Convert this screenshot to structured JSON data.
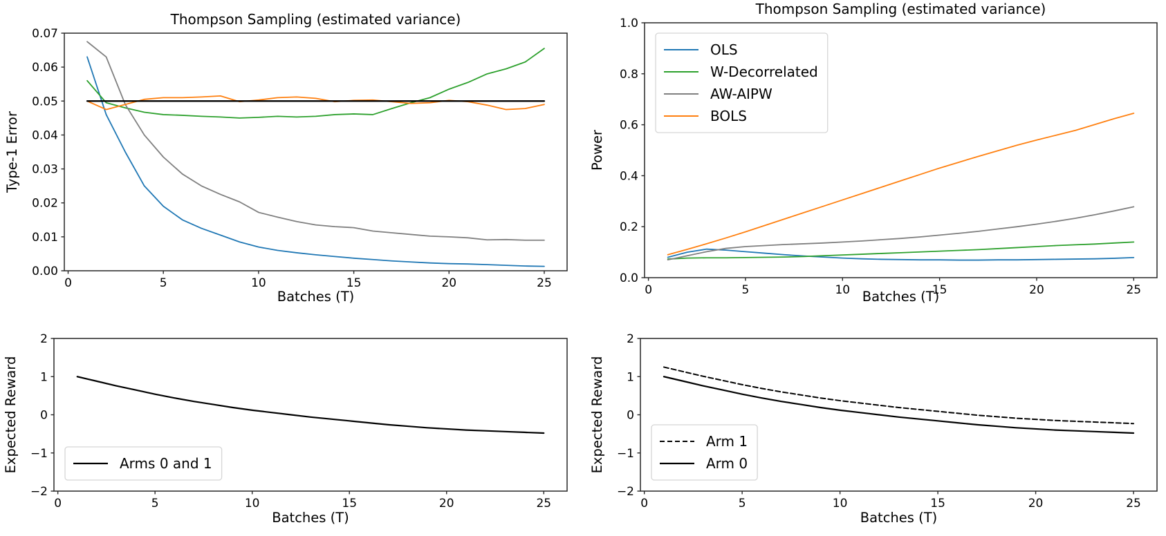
{
  "figure": {
    "background": "#ffffff",
    "text_color": "#000000",
    "spine_color": "#262626"
  },
  "chart_data": [
    {
      "type": "line",
      "title": "Thompson Sampling (estimated variance)",
      "xlabel": "Batches (T)",
      "ylabel": "Type-1 Error",
      "xlim": [
        -0.2,
        26.2
      ],
      "ylim": [
        0,
        0.07
      ],
      "xticks": [
        0,
        5,
        10,
        15,
        20,
        25
      ],
      "yticks": [
        0.0,
        0.01,
        0.02,
        0.03,
        0.04,
        0.05,
        0.06,
        0.07
      ],
      "ytick_decimals": 2,
      "grid": false,
      "legend": null,
      "x": [
        1,
        2,
        3,
        4,
        5,
        6,
        7,
        8,
        9,
        10,
        11,
        12,
        13,
        14,
        15,
        16,
        17,
        18,
        19,
        20,
        21,
        22,
        23,
        24,
        25
      ],
      "series": [
        {
          "name": "OLS",
          "color": "#1f77b4",
          "linestyle": "solid",
          "linewidth": 1.8,
          "values": [
            0.063,
            0.046,
            0.035,
            0.025,
            0.019,
            0.015,
            0.0125,
            0.0105,
            0.0085,
            0.007,
            0.006,
            0.0053,
            0.0047,
            0.0042,
            0.0037,
            0.0033,
            0.0029,
            0.0026,
            0.0023,
            0.0021,
            0.002,
            0.0018,
            0.0016,
            0.0014,
            0.0013
          ]
        },
        {
          "name": "W-Decorrelated",
          "color": "#2ca02c",
          "linestyle": "solid",
          "linewidth": 1.8,
          "values": [
            0.056,
            0.0495,
            0.048,
            0.0467,
            0.046,
            0.0458,
            0.0455,
            0.0453,
            0.045,
            0.0452,
            0.0455,
            0.0453,
            0.0455,
            0.046,
            0.0462,
            0.046,
            0.0478,
            0.0495,
            0.051,
            0.0535,
            0.0555,
            0.058,
            0.0595,
            0.0615,
            0.0655
          ]
        },
        {
          "name": "AW-AIPW",
          "color": "#7f7f7f",
          "linestyle": "solid",
          "linewidth": 1.8,
          "values": [
            0.0675,
            0.063,
            0.049,
            0.04,
            0.0335,
            0.0285,
            0.025,
            0.0225,
            0.0203,
            0.0172,
            0.0158,
            0.0145,
            0.0135,
            0.013,
            0.0127,
            0.0117,
            0.0112,
            0.0107,
            0.0102,
            0.01,
            0.0097,
            0.0091,
            0.0092,
            0.009,
            0.009
          ]
        },
        {
          "name": "BOLS",
          "color": "#ff7f0e",
          "linestyle": "solid",
          "linewidth": 1.8,
          "values": [
            0.05,
            0.0475,
            0.049,
            0.0505,
            0.051,
            0.051,
            0.0512,
            0.0515,
            0.0498,
            0.0503,
            0.051,
            0.0512,
            0.0508,
            0.0498,
            0.0502,
            0.0503,
            0.0498,
            0.0493,
            0.0495,
            0.0502,
            0.0498,
            0.0488,
            0.0475,
            0.0478,
            0.049
          ]
        },
        {
          "name": "alpha-reference-0.05",
          "color": "#000000",
          "linestyle": "solid",
          "linewidth": 2.4,
          "x": [
            1,
            25
          ],
          "values": [
            0.05,
            0.05
          ]
        }
      ]
    },
    {
      "type": "line",
      "title": "Thompson Sampling (estimated variance)",
      "xlabel": "Batches (T)",
      "ylabel": "Power",
      "xlim": [
        -0.2,
        26.2
      ],
      "ylim": [
        0,
        1.0
      ],
      "xticks": [
        0,
        5,
        10,
        15,
        20,
        25
      ],
      "yticks": [
        0.0,
        0.2,
        0.4,
        0.6,
        0.8,
        1.0
      ],
      "ytick_decimals": 1,
      "grid": false,
      "legend": {
        "loc": "upper-left",
        "entries": [
          "OLS",
          "W-Decorrelated",
          "AW-AIPW",
          "BOLS"
        ]
      },
      "x": [
        1,
        2,
        3,
        4,
        5,
        6,
        7,
        8,
        9,
        10,
        11,
        12,
        13,
        14,
        15,
        16,
        17,
        18,
        19,
        20,
        21,
        22,
        23,
        24,
        25
      ],
      "series": [
        {
          "name": "OLS",
          "color": "#1f77b4",
          "linestyle": "solid",
          "linewidth": 1.8,
          "values": [
            0.08,
            0.1,
            0.112,
            0.108,
            0.102,
            0.096,
            0.09,
            0.085,
            0.081,
            0.077,
            0.074,
            0.072,
            0.071,
            0.07,
            0.07,
            0.069,
            0.069,
            0.07,
            0.07,
            0.071,
            0.072,
            0.073,
            0.074,
            0.076,
            0.079
          ]
        },
        {
          "name": "W-Decorrelated",
          "color": "#2ca02c",
          "linestyle": "solid",
          "linewidth": 1.8,
          "values": [
            0.073,
            0.077,
            0.078,
            0.078,
            0.079,
            0.08,
            0.081,
            0.083,
            0.086,
            0.089,
            0.092,
            0.095,
            0.098,
            0.101,
            0.104,
            0.107,
            0.11,
            0.114,
            0.118,
            0.122,
            0.126,
            0.129,
            0.132,
            0.136,
            0.14
          ]
        },
        {
          "name": "AW-AIPW",
          "color": "#7f7f7f",
          "linestyle": "solid",
          "linewidth": 1.8,
          "values": [
            0.07,
            0.086,
            0.102,
            0.115,
            0.122,
            0.126,
            0.13,
            0.133,
            0.136,
            0.14,
            0.144,
            0.149,
            0.154,
            0.16,
            0.167,
            0.174,
            0.182,
            0.191,
            0.2,
            0.21,
            0.221,
            0.233,
            0.247,
            0.262,
            0.278
          ]
        },
        {
          "name": "BOLS",
          "color": "#ff7f0e",
          "linestyle": "solid",
          "linewidth": 1.8,
          "values": [
            0.09,
            0.111,
            0.133,
            0.156,
            0.18,
            0.205,
            0.23,
            0.255,
            0.28,
            0.305,
            0.33,
            0.355,
            0.38,
            0.405,
            0.43,
            0.453,
            0.476,
            0.498,
            0.52,
            0.54,
            0.559,
            0.578,
            0.601,
            0.624,
            0.645
          ]
        }
      ]
    },
    {
      "type": "line",
      "title": "",
      "xlabel": "Batches (T)",
      "ylabel": "Expected Reward",
      "xlim": [
        -0.2,
        26.2
      ],
      "ylim": [
        -2,
        2
      ],
      "xticks": [
        0,
        5,
        10,
        15,
        20,
        25
      ],
      "yticks": [
        -2,
        -1,
        0,
        1,
        2
      ],
      "ytick_decimals": 0,
      "grid": false,
      "legend": {
        "loc": "lower-left",
        "entries": [
          "Arms 0 and 1"
        ]
      },
      "x": [
        1,
        2,
        3,
        4,
        5,
        6,
        7,
        8,
        9,
        10,
        11,
        12,
        13,
        14,
        15,
        16,
        17,
        18,
        19,
        20,
        21,
        22,
        23,
        24,
        25
      ],
      "series": [
        {
          "name": "Arms 0 and 1",
          "color": "#000000",
          "linestyle": "solid",
          "linewidth": 2.2,
          "values": [
            1.0,
            0.88,
            0.76,
            0.65,
            0.54,
            0.44,
            0.35,
            0.27,
            0.19,
            0.12,
            0.06,
            0.0,
            -0.06,
            -0.11,
            -0.16,
            -0.21,
            -0.26,
            -0.3,
            -0.34,
            -0.37,
            -0.4,
            -0.42,
            -0.44,
            -0.46,
            -0.48
          ]
        }
      ]
    },
    {
      "type": "line",
      "title": "",
      "xlabel": "Batches (T)",
      "ylabel": "Expected Reward",
      "xlim": [
        -0.2,
        26.2
      ],
      "ylim": [
        -2,
        2
      ],
      "xticks": [
        0,
        5,
        10,
        15,
        20,
        25
      ],
      "yticks": [
        -2,
        -1,
        0,
        1,
        2
      ],
      "ytick_decimals": 0,
      "grid": false,
      "legend": {
        "loc": "lower-left",
        "entries": [
          "Arm 1",
          "Arm 0"
        ]
      },
      "x": [
        1,
        2,
        3,
        4,
        5,
        6,
        7,
        8,
        9,
        10,
        11,
        12,
        13,
        14,
        15,
        16,
        17,
        18,
        19,
        20,
        21,
        22,
        23,
        24,
        25
      ],
      "series": [
        {
          "name": "Arm 1",
          "color": "#000000",
          "linestyle": "dashed",
          "linewidth": 2.0,
          "values": [
            1.25,
            1.13,
            1.01,
            0.9,
            0.79,
            0.69,
            0.6,
            0.52,
            0.44,
            0.37,
            0.31,
            0.25,
            0.19,
            0.14,
            0.09,
            0.04,
            -0.01,
            -0.05,
            -0.09,
            -0.12,
            -0.15,
            -0.17,
            -0.19,
            -0.21,
            -0.23
          ]
        },
        {
          "name": "Arm 0",
          "color": "#000000",
          "linestyle": "solid",
          "linewidth": 2.2,
          "values": [
            1.0,
            0.88,
            0.76,
            0.65,
            0.54,
            0.44,
            0.35,
            0.27,
            0.19,
            0.12,
            0.06,
            0.0,
            -0.06,
            -0.11,
            -0.16,
            -0.21,
            -0.26,
            -0.3,
            -0.34,
            -0.37,
            -0.4,
            -0.42,
            -0.44,
            -0.46,
            -0.48
          ]
        }
      ]
    }
  ]
}
